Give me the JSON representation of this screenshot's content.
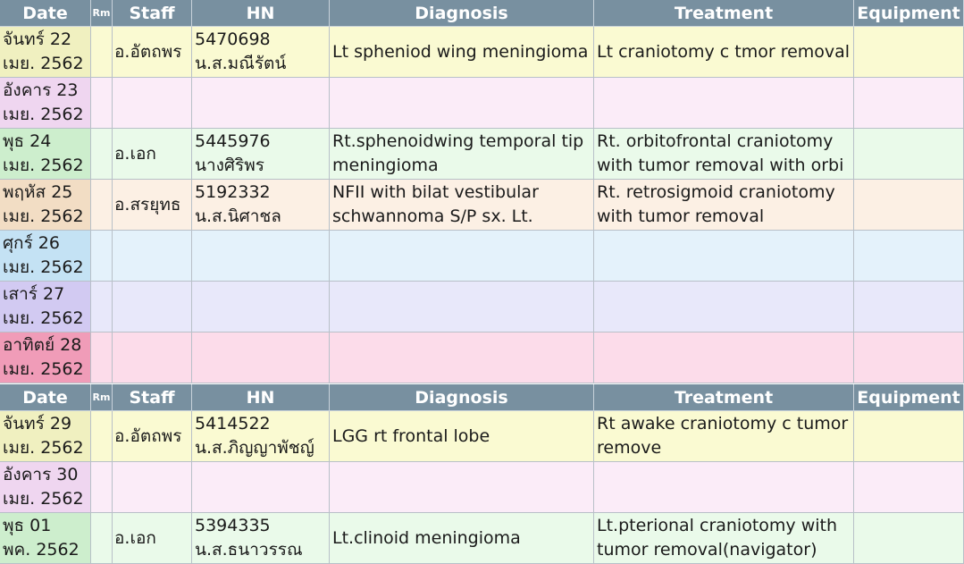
{
  "header": {
    "date": "Date",
    "rm": "Rm",
    "staff": "Staff",
    "hn": "HN",
    "diagnosis": "Diagnosis",
    "treatment": "Treatment",
    "equipment": "Equipment"
  },
  "colors": {
    "header_bg": "#7890a0",
    "mon": "#fafad2",
    "tue": "#fbecf8",
    "wed": "#eafaea",
    "thu": "#fcf0e4",
    "fri": "#e4f2fb",
    "sat": "#e8e8fa",
    "sun": "#fcdcea",
    "mon_date": "#f0f0c0",
    "tue_date": "#efd6f0",
    "wed_date": "#cdeecd",
    "thu_date": "#f2ddc4",
    "fri_date": "#c4e2f4",
    "sat_date": "#d2caf2",
    "sun_date": "#f09cb8"
  },
  "rows": [
    {
      "date1": "จันทร์ 22",
      "date2": "เมย. 2562",
      "staff": "อ.อัตถพร",
      "hn1": "5470698",
      "hn2": "น.ส.มณีรัตน์",
      "diag1": "Lt spheniod wing meningioma",
      "diag2": "",
      "treat1": "Lt craniotomy c tmor removal",
      "treat2": ""
    },
    {
      "date1": "อังคาร 23",
      "date2": "เมย. 2562",
      "staff": "",
      "hn1": "",
      "hn2": "",
      "diag1": "",
      "diag2": "",
      "treat1": "",
      "treat2": ""
    },
    {
      "date1": "พุธ 24",
      "date2": "เมย. 2562",
      "staff": "อ.เอก",
      "hn1": "5445976",
      "hn2": "นางศิริพร",
      "diag1": "Rt.sphenoidwing temporal tip",
      "diag2": "meningioma",
      "treat1": "Rt. orbitofrontal craniotomy",
      "treat2": "with tumor removal with orbi"
    },
    {
      "date1": "พฤหัส 25",
      "date2": "เมย. 2562",
      "staff": "อ.สรยุทธ",
      "hn1": "5192332",
      "hn2": "น.ส.นิศาชล",
      "diag1": "NFII with bilat vestibular",
      "diag2": "schwannoma S/P sx. Lt.",
      "treat1": "Rt. retrosigmoid craniotomy",
      "treat2": "with tumor removal"
    },
    {
      "date1": "ศุกร์ 26",
      "date2": "เมย. 2562",
      "staff": "",
      "hn1": "",
      "hn2": "",
      "diag1": "",
      "diag2": "",
      "treat1": "",
      "treat2": ""
    },
    {
      "date1": "เสาร์ 27",
      "date2": "เมย. 2562",
      "staff": "",
      "hn1": "",
      "hn2": "",
      "diag1": "",
      "diag2": "",
      "treat1": "",
      "treat2": ""
    },
    {
      "date1": "อาทิตย์ 28",
      "date2": "เมย. 2562",
      "staff": "",
      "hn1": "",
      "hn2": "",
      "diag1": "",
      "diag2": "",
      "treat1": "",
      "treat2": ""
    },
    {
      "date1": "จันทร์ 29",
      "date2": "เมย. 2562",
      "staff": "อ.อัตถพร",
      "hn1": "5414522",
      "hn2": "น.ส.ภิญญาพัชญ์",
      "diag1": "LGG rt frontal lobe",
      "diag2": "",
      "treat1": "Rt awake craniotomy c tumor",
      "treat2": "remove"
    },
    {
      "date1": "อังคาร 30",
      "date2": "เมย. 2562",
      "staff": "",
      "hn1": "",
      "hn2": "",
      "diag1": "",
      "diag2": "",
      "treat1": "",
      "treat2": ""
    },
    {
      "date1": "พุธ 01",
      "date2": "พค. 2562",
      "staff": "อ.เอก",
      "hn1": "5394335",
      "hn2": "น.ส.ธนาวรรณ",
      "diag1": "Lt.clinoid meningioma",
      "diag2": "",
      "treat1": "Lt.pterional craniotomy with",
      "treat2": "tumor removal(navigator)"
    }
  ]
}
